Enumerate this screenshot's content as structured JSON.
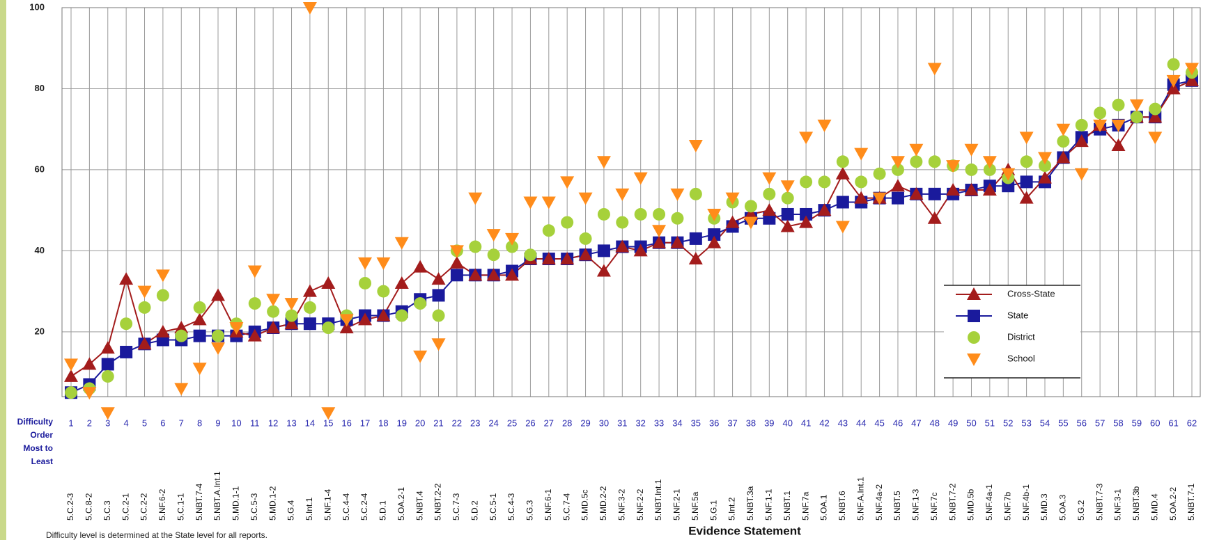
{
  "chart_data": {
    "type": "line",
    "x_label": "Evidence Statement",
    "category_axis_label": [
      "Difficulty",
      "Order",
      "Most to",
      "Least"
    ],
    "footnote": "Difficulty level is determined at the State level for all reports.",
    "categories": [
      "1",
      "2",
      "3",
      "4",
      "5",
      "6",
      "7",
      "8",
      "9",
      "10",
      "11",
      "12",
      "13",
      "14",
      "15",
      "16",
      "17",
      "18",
      "19",
      "20",
      "21",
      "22",
      "23",
      "24",
      "25",
      "26",
      "27",
      "28",
      "29",
      "30",
      "31",
      "32",
      "33",
      "34",
      "35",
      "36",
      "37",
      "38",
      "39",
      "40",
      "41",
      "42",
      "43",
      "44",
      "45",
      "46",
      "47",
      "48",
      "49",
      "50",
      "51",
      "52",
      "53",
      "54",
      "55",
      "56",
      "57",
      "58",
      "59",
      "60",
      "61",
      "62"
    ],
    "evidence_statements": [
      "5.C.2-3",
      "5.C.8-2",
      "5.C.3",
      "5.C.2-1",
      "5.C.2-2",
      "5.NF.6-2",
      "5.C.1-1",
      "5.NBT.7-4",
      "5.NBT.A.Int.1",
      "5.MD.1-1",
      "5.C.5-3",
      "5.MD.1-2",
      "5.G.4",
      "5.Int.1",
      "5.NF.1-4",
      "5.C.4-4",
      "5.C.2-4",
      "5.D.1",
      "5.OA.2-1",
      "5.NBT.4",
      "5.NBT.2-2",
      "5.C.7-3",
      "5.D.2",
      "5.C.5-1",
      "5.C.4-3",
      "5.G.3",
      "5.NF.6-1",
      "5.C.7-4",
      "5.MD.5c",
      "5.MD.2-2",
      "5.NF.3-2",
      "5.NF.2-2",
      "5.NBT.Int.1",
      "5.NF.2-1",
      "5.NF.5a",
      "5.G.1",
      "5.Int.2",
      "5.NBT.3a",
      "5.NF.1-1",
      "5.NBT.1",
      "5.NF.7a",
      "5.OA.1",
      "5.NBT.6",
      "5.NF.A.Int.1",
      "5.NF.4a-2",
      "5.NBT.5",
      "5.NF.1-3",
      "5.NF.7c",
      "5.NBT.7-2",
      "5.MD.5b",
      "5.NF.4a-1",
      "5.NF.7b",
      "5.NF.4b-1",
      "5.MD.3",
      "5.OA.3",
      "5.G.2",
      "5.NBT.7-3",
      "5.NF.3-1",
      "5.NBT.3b",
      "5.MD.4",
      "5.OA.2-2",
      "5.NBT.7-1"
    ],
    "series": [
      {
        "name": "Cross-State",
        "color": "#a31c1c",
        "line": true,
        "marker": "triangle-up",
        "values": [
          9,
          12,
          16,
          33,
          17,
          20,
          21,
          23,
          29,
          20,
          19,
          21,
          22,
          30,
          32,
          21,
          23,
          24,
          32,
          36,
          33,
          37,
          34,
          34,
          34,
          38,
          38,
          38,
          39,
          35,
          41,
          40,
          42,
          42,
          38,
          42,
          47,
          49,
          50,
          46,
          47,
          50,
          59,
          53,
          53,
          56,
          54,
          48,
          55,
          55,
          55,
          60,
          53,
          58,
          63,
          67,
          71,
          66,
          73,
          73,
          80,
          82
        ]
      },
      {
        "name": "State",
        "color": "#1a1a9c",
        "line": true,
        "marker": "square",
        "values": [
          5,
          7,
          12,
          15,
          17,
          18,
          18,
          19,
          19,
          19,
          20,
          21,
          22,
          22,
          22,
          23,
          24,
          24,
          25,
          28,
          29,
          34,
          34,
          34,
          35,
          38,
          38,
          38,
          39,
          40,
          41,
          41,
          42,
          42,
          43,
          44,
          46,
          48,
          48,
          49,
          49,
          50,
          52,
          52,
          53,
          53,
          54,
          54,
          54,
          55,
          56,
          56,
          57,
          57,
          63,
          68,
          70,
          71,
          73,
          73,
          81,
          82
        ]
      },
      {
        "name": "District",
        "color": "#a6d13b",
        "line": false,
        "marker": "circle",
        "values": [
          5,
          6,
          9,
          22,
          26,
          29,
          19,
          26,
          19,
          22,
          27,
          25,
          24,
          26,
          21,
          24,
          32,
          30,
          24,
          27,
          24,
          40,
          41,
          39,
          41,
          39,
          45,
          47,
          43,
          49,
          47,
          49,
          49,
          48,
          54,
          48,
          52,
          51,
          54,
          53,
          57,
          57,
          62,
          57,
          59,
          60,
          62,
          62,
          61,
          60,
          60,
          58,
          62,
          61,
          67,
          71,
          74,
          76,
          73,
          75,
          86,
          84
        ]
      },
      {
        "name": "School",
        "color": "#ff8c1a",
        "line": false,
        "marker": "triangle-down",
        "values": [
          12,
          5,
          0,
          null,
          30,
          34,
          6,
          11,
          16,
          21,
          35,
          28,
          27,
          100,
          0,
          23,
          37,
          37,
          42,
          14,
          17,
          40,
          53,
          44,
          43,
          52,
          52,
          57,
          53,
          62,
          54,
          58,
          45,
          54,
          66,
          49,
          53,
          47,
          58,
          56,
          68,
          71,
          46,
          64,
          53,
          62,
          65,
          85,
          61,
          65,
          62,
          59,
          68,
          63,
          70,
          59,
          71,
          71,
          76,
          68,
          82,
          85
        ]
      }
    ],
    "ylim": [
      4,
      100
    ],
    "yticks": [
      20,
      40,
      60,
      80,
      100
    ],
    "grid": true,
    "legend": "lower right"
  }
}
